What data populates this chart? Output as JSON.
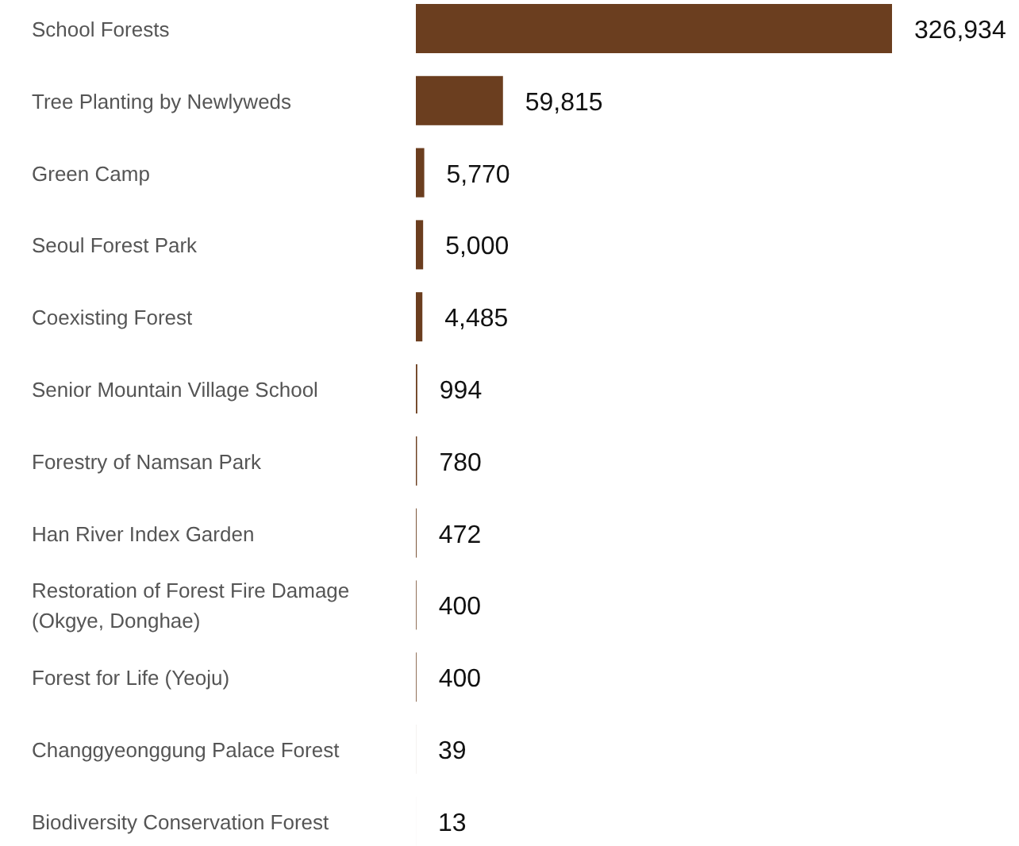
{
  "chart_data": {
    "type": "bar",
    "orientation": "horizontal",
    "categories": [
      "School Forests",
      "Tree Planting by Newlyweds",
      "Green Camp",
      "Seoul Forest Park",
      "Coexisting Forest",
      "Senior Mountain Village School",
      "Forestry of Namsan Park",
      "Han River Index Garden",
      "Restoration of Forest Fire Damage (Okgye, Donghae)",
      "Forest for Life (Yeoju)",
      "Changgyeonggung Palace Forest",
      "Biodiversity Conservation Forest"
    ],
    "values": [
      326934,
      59815,
      5770,
      5000,
      4485,
      994,
      780,
      472,
      400,
      400,
      39,
      13
    ],
    "value_labels": [
      "326,934",
      "59,815",
      "5,770",
      "5,000",
      "4,485",
      "994",
      "780",
      "472",
      "400",
      "400",
      "39",
      "13"
    ],
    "color": "#6b3e1f"
  }
}
